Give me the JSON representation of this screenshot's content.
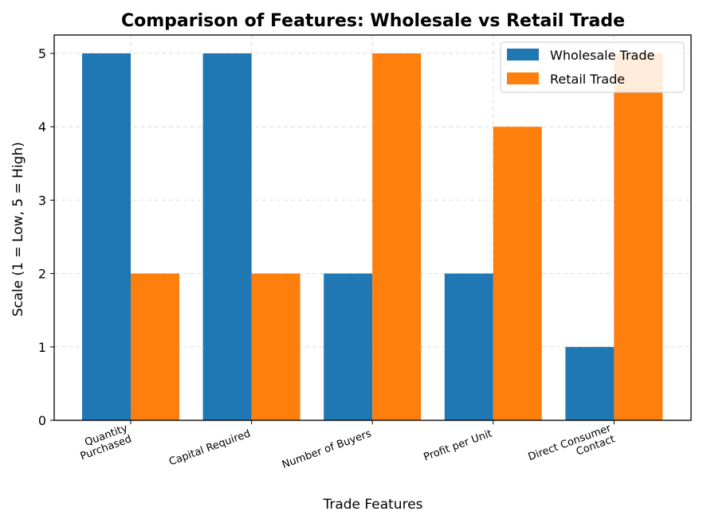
{
  "chart_data": {
    "type": "bar",
    "title": "Comparison of Features: Wholesale vs Retail Trade",
    "xlabel": "Trade Features",
    "ylabel": "Scale (1 = Low, 5 = High)",
    "categories": [
      [
        "Quantity",
        "Purchased"
      ],
      [
        "Capital Required"
      ],
      [
        "Number of Buyers"
      ],
      [
        "Profit per Unit"
      ],
      [
        "Direct Consumer",
        "Contact"
      ]
    ],
    "series": [
      {
        "name": "Wholesale Trade",
        "color": "#1f77b4",
        "values": [
          5,
          5,
          2,
          2,
          1
        ]
      },
      {
        "name": "Retail Trade",
        "color": "#ff7f0e",
        "values": [
          2,
          2,
          5,
          4,
          5
        ]
      }
    ],
    "ylim": [
      0,
      5.25
    ],
    "yticks": [
      0,
      1,
      2,
      3,
      4,
      5
    ],
    "grid": true,
    "legend_position": "top-right"
  }
}
